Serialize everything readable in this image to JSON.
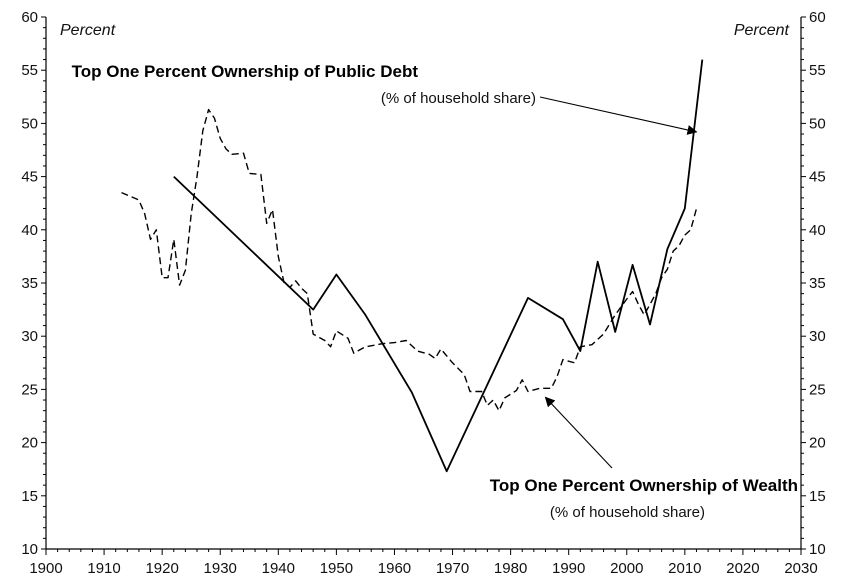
{
  "chart_data": {
    "type": "line",
    "title": "",
    "xlim": [
      1900,
      2030
    ],
    "ylim": [
      10,
      60
    ],
    "x_ticks": [
      1900,
      1910,
      1920,
      1930,
      1940,
      1950,
      1960,
      1970,
      1980,
      1990,
      2000,
      2010,
      2020,
      2030
    ],
    "y_ticks": [
      10,
      15,
      20,
      25,
      30,
      35,
      40,
      45,
      50,
      55,
      60
    ],
    "left_unit_label": "Percent",
    "right_unit_label": "Percent",
    "grid": false,
    "series": [
      {
        "name": "Top One Percent Ownership of Public Debt",
        "subtitle": "(% of household share)",
        "style": "solid",
        "points": [
          [
            1922,
            45.0
          ],
          [
            1946,
            32.5
          ],
          [
            1950,
            35.8
          ],
          [
            1955,
            32.0
          ],
          [
            1963,
            24.7
          ],
          [
            1969,
            17.3
          ],
          [
            1983,
            33.6
          ],
          [
            1989,
            31.6
          ],
          [
            1992,
            28.6
          ],
          [
            1995,
            37.0
          ],
          [
            1998,
            30.4
          ],
          [
            2001,
            36.7
          ],
          [
            2004,
            31.1
          ],
          [
            2007,
            38.2
          ],
          [
            2010,
            42.0
          ],
          [
            2013,
            56.0
          ]
        ]
      },
      {
        "name": "Top One Percent Ownership of Wealth",
        "subtitle": "(% of household share)",
        "style": "dashed",
        "points": [
          [
            1913,
            43.5
          ],
          [
            1916,
            42.8
          ],
          [
            1917,
            41.5
          ],
          [
            1918,
            39.1
          ],
          [
            1919,
            40.0
          ],
          [
            1920,
            35.5
          ],
          [
            1921,
            35.5
          ],
          [
            1922,
            39.1
          ],
          [
            1923,
            34.8
          ],
          [
            1924,
            36.2
          ],
          [
            1925,
            41.5
          ],
          [
            1926,
            45.0
          ],
          [
            1927,
            49.3
          ],
          [
            1928,
            51.3
          ],
          [
            1929,
            50.5
          ],
          [
            1930,
            48.6
          ],
          [
            1931,
            47.6
          ],
          [
            1932,
            47.1
          ],
          [
            1934,
            47.2
          ],
          [
            1935,
            45.3
          ],
          [
            1937,
            45.2
          ],
          [
            1938,
            40.6
          ],
          [
            1939,
            41.9
          ],
          [
            1940,
            37.5
          ],
          [
            1941,
            35.0
          ],
          [
            1942,
            34.6
          ],
          [
            1943,
            35.2
          ],
          [
            1944,
            34.5
          ],
          [
            1945,
            34.0
          ],
          [
            1946,
            30.2
          ],
          [
            1948,
            29.6
          ],
          [
            1949,
            29.0
          ],
          [
            1950,
            30.5
          ],
          [
            1952,
            29.8
          ],
          [
            1953,
            28.4
          ],
          [
            1955,
            29.0
          ],
          [
            1958,
            29.3
          ],
          [
            1960,
            29.4
          ],
          [
            1962,
            29.6
          ],
          [
            1964,
            28.6
          ],
          [
            1966,
            28.3
          ],
          [
            1967,
            27.9
          ],
          [
            1968,
            28.8
          ],
          [
            1970,
            27.5
          ],
          [
            1972,
            26.4
          ],
          [
            1973,
            24.8
          ],
          [
            1975,
            24.8
          ],
          [
            1976,
            23.5
          ],
          [
            1977,
            24.0
          ],
          [
            1978,
            23.0
          ],
          [
            1979,
            24.2
          ],
          [
            1981,
            24.9
          ],
          [
            1982,
            25.9
          ],
          [
            1983,
            24.8
          ],
          [
            1985,
            25.1
          ],
          [
            1987,
            25.1
          ],
          [
            1988,
            26.2
          ],
          [
            1989,
            27.8
          ],
          [
            1991,
            27.5
          ],
          [
            1992,
            29.0
          ],
          [
            1994,
            29.2
          ],
          [
            1996,
            30.2
          ],
          [
            1998,
            32.0
          ],
          [
            2000,
            33.5
          ],
          [
            2001,
            34.2
          ],
          [
            2002,
            33.0
          ],
          [
            2003,
            32.0
          ],
          [
            2004,
            33.0
          ],
          [
            2005,
            34.0
          ],
          [
            2006,
            35.5
          ],
          [
            2007,
            36.3
          ],
          [
            2008,
            38.0
          ],
          [
            2009,
            38.5
          ],
          [
            2010,
            39.5
          ],
          [
            2011,
            40.0
          ],
          [
            2012,
            42.0
          ]
        ]
      }
    ],
    "annotations": [
      {
        "series": 0,
        "title": "Top One Percent Ownership of Public Debt",
        "subtitle": "(% of household share)",
        "arrow_to": [
          2012,
          49.2
        ]
      },
      {
        "series": 1,
        "title": "Top One Percent Ownership of Wealth",
        "subtitle": "(% of household share)",
        "arrow_to": [
          1986,
          25.0
        ]
      }
    ]
  }
}
